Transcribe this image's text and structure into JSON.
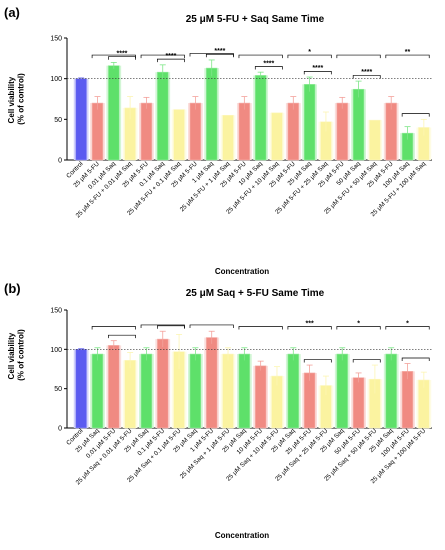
{
  "figure": {
    "colors": {
      "control": "#5b5bf0",
      "five_fu": "#f08a82",
      "saq": "#5ee06a",
      "combo": "#fbf3a0",
      "axis": "#000000"
    }
  },
  "chart_data": [
    {
      "type": "bar",
      "panel_label": "(a)",
      "title": "25 μM 5-FU + Saq Same Time",
      "ylabel": "Cell viability\n(% of control)",
      "xlabel": "Concentration",
      "ylim": [
        0,
        150
      ],
      "yticks": [
        0,
        50,
        100,
        150
      ],
      "reference_line": 100,
      "grid": false,
      "legend": "none",
      "categories": [
        "Control",
        "25 μM 5-FU",
        "0.01 μM Saq",
        "25 μM 5-FU + 0.01 μM Saq",
        "25 μM 5-FU",
        "0.1 μM Saq",
        "25 μM 5-FU + 0.1 μM Saq",
        "25 μM 5-FU",
        "1 μM Saq",
        "25 μM 5-FU + 1 μM Saq",
        "25 μM 5-FU",
        "10 μM Saq",
        "25 μM 5-FU + 10 μM Saq",
        "25 μM 5-FU",
        "25 μM Saq",
        "25 μM 5-FU + 25 μM Saq",
        "25 μM 5-FU",
        "50 μM Saq",
        "25 μM 5-FU + 50 μM Saq",
        "25 μM 5-FU",
        "100 μM Saq",
        "25 μM 5-FU + 100 μM Saq"
      ],
      "kinds": [
        "control",
        "five_fu",
        "saq",
        "combo",
        "five_fu",
        "saq",
        "combo",
        "five_fu",
        "saq",
        "combo",
        "five_fu",
        "saq",
        "combo",
        "five_fu",
        "saq",
        "combo",
        "five_fu",
        "saq",
        "combo",
        "five_fu",
        "saq",
        "combo"
      ],
      "values": [
        100,
        70,
        116,
        64,
        70,
        108,
        62,
        70,
        113,
        55,
        70,
        104,
        58,
        70,
        93,
        47,
        70,
        87,
        49,
        70,
        33,
        40
      ],
      "errors": [
        1,
        8,
        4,
        14,
        7,
        9,
        0,
        8,
        10,
        0,
        8,
        4,
        0,
        8,
        9,
        12,
        7,
        10,
        0,
        8,
        8,
        10
      ],
      "significance": [
        {
          "from": 1,
          "to": 3,
          "label": ""
        },
        {
          "from": 2,
          "to": 3,
          "label": "****"
        },
        {
          "from": 4,
          "to": 6,
          "label": ""
        },
        {
          "from": 5,
          "to": 6,
          "label": "****"
        },
        {
          "from": 7,
          "to": 9,
          "label": ""
        },
        {
          "from": 8,
          "to": 9,
          "label": "****"
        },
        {
          "from": 10,
          "to": 12,
          "label": ""
        },
        {
          "from": 11,
          "to": 12,
          "label": "****"
        },
        {
          "from": 13,
          "to": 15,
          "label": "*"
        },
        {
          "from": 14,
          "to": 15,
          "label": "****"
        },
        {
          "from": 16,
          "to": 18,
          "label": ""
        },
        {
          "from": 17,
          "to": 18,
          "label": "****"
        },
        {
          "from": 19,
          "to": 21,
          "label": "**"
        },
        {
          "from": 20,
          "to": 21,
          "label": ""
        }
      ]
    },
    {
      "type": "bar",
      "panel_label": "(b)",
      "title": "25 μM Saq + 5-FU Same Time",
      "ylabel": "Cell viability\n(% of control)",
      "xlabel": "Concentration",
      "ylim": [
        0,
        150
      ],
      "yticks": [
        0,
        50,
        100,
        150
      ],
      "reference_line": 100,
      "grid": false,
      "legend": "none",
      "categories": [
        "Control",
        "25 μM Saq",
        "0.01 μM 5-FU",
        "25 μM Saq + 0.01 μM 5-FU",
        "25 μM Saq",
        "0.1 μM 5-FU",
        "25 μM Saq + 0.1 μM 5-FU",
        "25 μM Saq",
        "1 μM 5-FU",
        "25 μM Saq + 1 μM 5-FU",
        "25 μM Saq",
        "10 μM 5-FU",
        "25 μM Saq + 10 μM 5-FU",
        "25 μM Saq",
        "25 μM 5-FU",
        "25 μM Saq + 25 μM 5-FU",
        "25 μM Saq",
        "50 μM 5-FU",
        "25 μM Saq + 50 μM 5-FU",
        "25 μM Saq",
        "100 μM 5-FU",
        "25 μM Saq + 100 μM 5-FU"
      ],
      "kinds": [
        "control",
        "saq",
        "five_fu",
        "combo",
        "saq",
        "five_fu",
        "combo",
        "saq",
        "five_fu",
        "combo",
        "saq",
        "five_fu",
        "combo",
        "saq",
        "five_fu",
        "combo",
        "saq",
        "five_fu",
        "combo",
        "saq",
        "five_fu",
        "combo"
      ],
      "values": [
        100,
        94,
        105,
        86,
        94,
        113,
        97,
        94,
        115,
        94,
        94,
        79,
        66,
        94,
        70,
        54,
        94,
        64,
        62,
        94,
        72,
        61
      ],
      "errors": [
        1,
        8,
        6,
        10,
        8,
        10,
        22,
        8,
        8,
        8,
        8,
        6,
        12,
        8,
        10,
        12,
        8,
        6,
        18,
        8,
        10,
        10
      ],
      "significance": [
        {
          "from": 1,
          "to": 3,
          "label": ""
        },
        {
          "from": 2,
          "to": 3,
          "label": ""
        },
        {
          "from": 4,
          "to": 6,
          "label": ""
        },
        {
          "from": 5,
          "to": 6,
          "label": ""
        },
        {
          "from": 7,
          "to": 9,
          "label": ""
        },
        {
          "from": 10,
          "to": 12,
          "label": ""
        },
        {
          "from": 13,
          "to": 15,
          "label": "***"
        },
        {
          "from": 14,
          "to": 15,
          "label": ""
        },
        {
          "from": 16,
          "to": 18,
          "label": "*"
        },
        {
          "from": 17,
          "to": 18,
          "label": ""
        },
        {
          "from": 19,
          "to": 21,
          "label": "*"
        },
        {
          "from": 20,
          "to": 21,
          "label": ""
        }
      ]
    }
  ]
}
